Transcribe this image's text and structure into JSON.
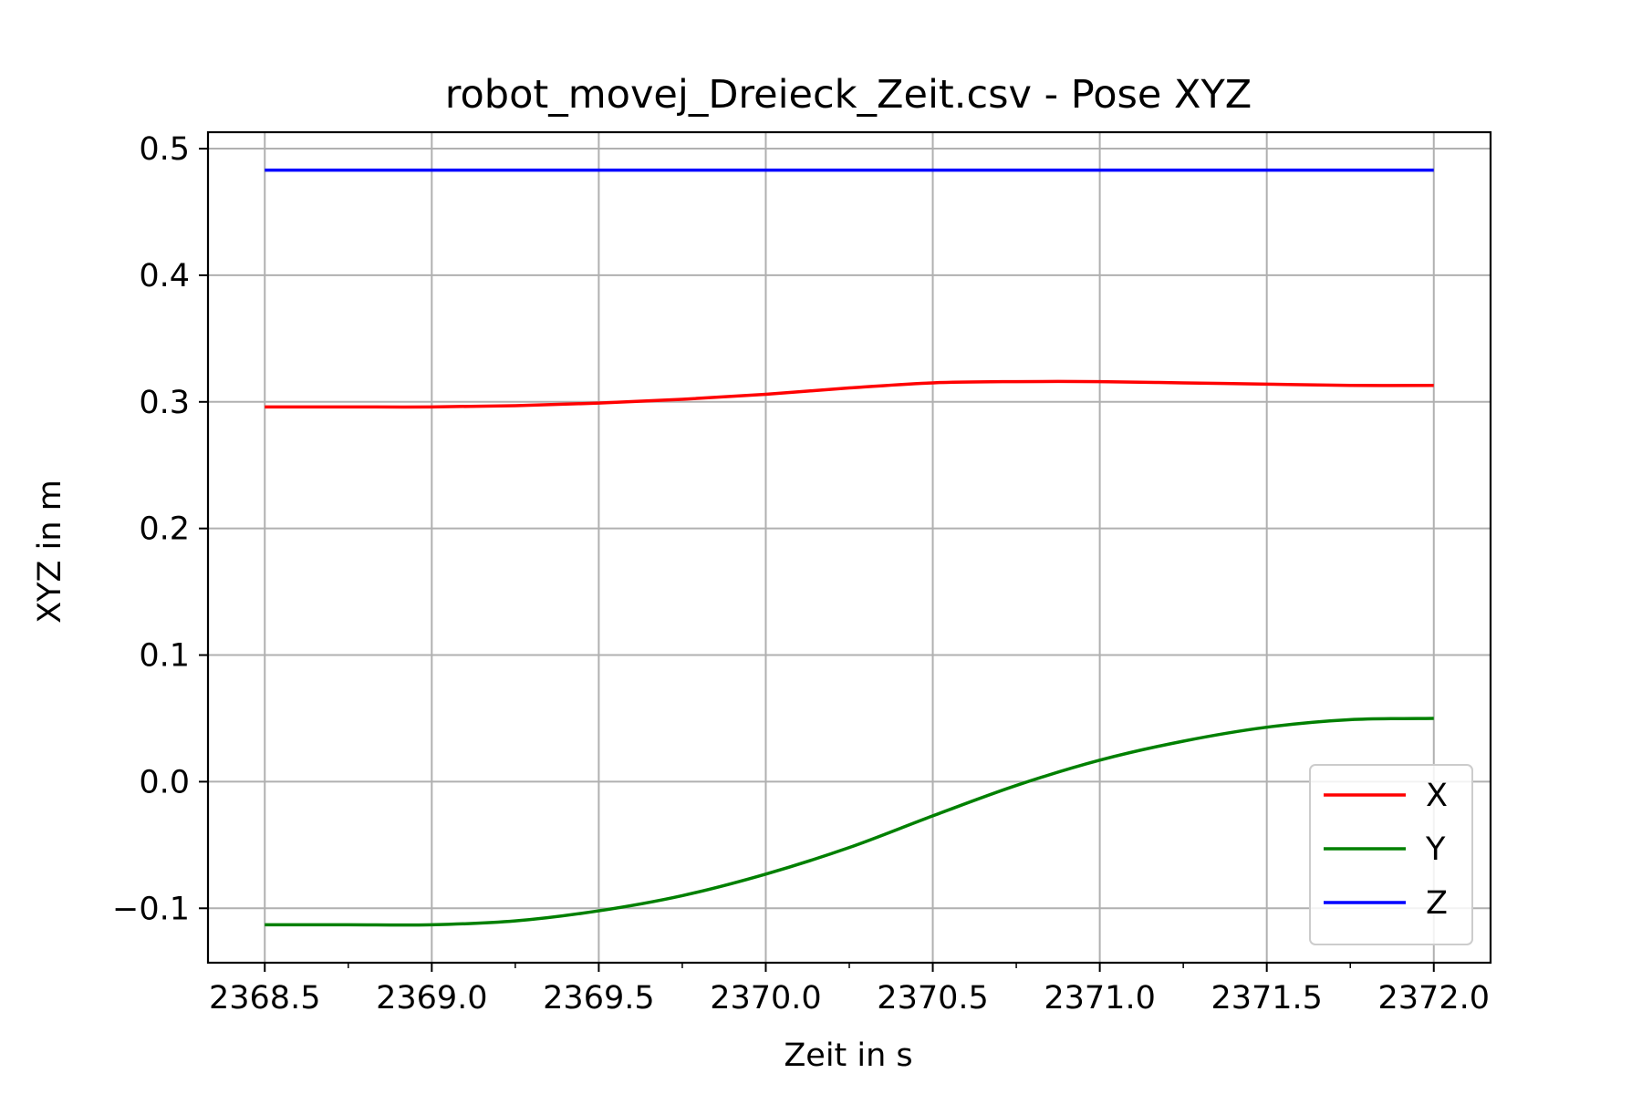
{
  "chart_data": {
    "type": "line",
    "title": "robot_movej_Dreieck_Zeit.csv - Pose XYZ",
    "xlabel": "Zeit in s",
    "ylabel": "XYZ in m",
    "xlim": [
      2368.33,
      2372.17
    ],
    "ylim": [
      -0.143,
      0.513
    ],
    "x_ticks": [
      2368.5,
      2369.0,
      2369.5,
      2370.0,
      2370.5,
      2371.0,
      2371.5,
      2372.0
    ],
    "x_tick_labels": [
      "2368.5",
      "2369.0",
      "2369.5",
      "2370.0",
      "2370.5",
      "2371.0",
      "2371.5",
      "2372.0"
    ],
    "x_minor_ticks": [
      2368.75,
      2369.25,
      2369.75,
      2370.25,
      2370.75,
      2371.25,
      2371.75
    ],
    "y_ticks": [
      -0.1,
      0.0,
      0.1,
      0.2,
      0.3,
      0.4,
      0.5
    ],
    "y_tick_labels": [
      "−0.1",
      "0.0",
      "0.1",
      "0.2",
      "0.3",
      "0.4",
      "0.5"
    ],
    "grid": true,
    "legend_position": "lower right",
    "series": [
      {
        "name": "X",
        "color": "#ff0000",
        "x": [
          2368.5,
          2368.75,
          2369.0,
          2369.25,
          2369.5,
          2369.75,
          2370.0,
          2370.25,
          2370.5,
          2370.75,
          2371.0,
          2371.25,
          2371.5,
          2371.75,
          2372.0
        ],
        "y": [
          0.296,
          0.296,
          0.296,
          0.297,
          0.299,
          0.302,
          0.306,
          0.311,
          0.315,
          0.316,
          0.316,
          0.315,
          0.314,
          0.313,
          0.313
        ]
      },
      {
        "name": "Y",
        "color": "#008000",
        "x": [
          2368.5,
          2368.75,
          2369.0,
          2369.25,
          2369.5,
          2369.75,
          2370.0,
          2370.25,
          2370.5,
          2370.75,
          2371.0,
          2371.25,
          2371.5,
          2371.75,
          2372.0
        ],
        "y": [
          -0.113,
          -0.113,
          -0.113,
          -0.11,
          -0.102,
          -0.09,
          -0.073,
          -0.052,
          -0.027,
          -0.003,
          0.017,
          0.032,
          0.043,
          0.049,
          0.05
        ]
      },
      {
        "name": "Z",
        "color": "#0000ff",
        "x": [
          2368.5,
          2372.0
        ],
        "y": [
          0.483,
          0.483
        ]
      }
    ]
  }
}
